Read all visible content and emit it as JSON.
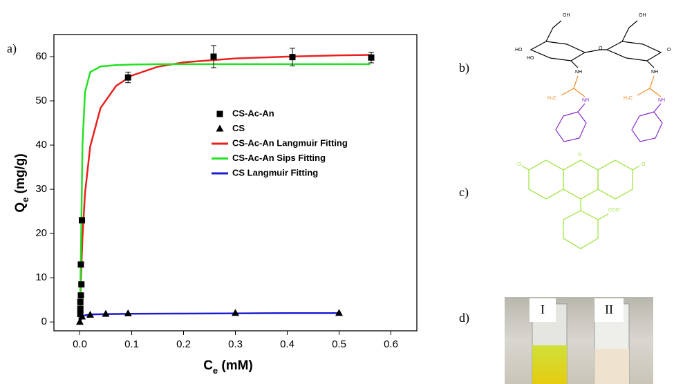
{
  "chart_data": {
    "type": "scatter-fit",
    "xlabel": {
      "main": "C",
      "sub": "e",
      "rest": " (mM)"
    },
    "ylabel": {
      "main": "Q",
      "sub": "e",
      "rest": " (mg/g)"
    },
    "xlim": [
      -0.05,
      0.65
    ],
    "ylim": [
      -2,
      65
    ],
    "xticks": [
      {
        "value": 0,
        "label": "0.0"
      },
      {
        "value": 0.1,
        "label": "0.1"
      },
      {
        "value": 0.2,
        "label": "0.2"
      },
      {
        "value": 0.3,
        "label": "0.3"
      },
      {
        "value": 0.4,
        "label": "0.4"
      },
      {
        "value": 0.5,
        "label": "0.5"
      },
      {
        "value": 0.6,
        "label": "0.6"
      }
    ],
    "yticks": [
      0,
      10,
      20,
      30,
      40,
      50,
      60
    ],
    "series": [
      {
        "name": "CS-Ac-An",
        "kind": "points",
        "marker": "square",
        "color": "#000000",
        "x": [
          0.001,
          0.001,
          0.001,
          0.002,
          0.003,
          0.002,
          0.004,
          0.093,
          0.258,
          0.41,
          0.562
        ],
        "values": [
          1.8,
          3,
          4.5,
          6,
          8.5,
          13,
          23,
          55.3,
          60,
          59.9,
          59.8
        ],
        "errors": [
          null,
          null,
          null,
          null,
          null,
          null,
          null,
          1.2,
          2.5,
          2,
          1.2
        ]
      },
      {
        "name": "CS",
        "kind": "points",
        "marker": "triangle",
        "color": "#000000",
        "x": [
          0,
          0.004,
          0.02,
          0.05,
          0.093,
          0.3,
          0.5
        ],
        "values": [
          0,
          1.2,
          1.6,
          1.8,
          1.9,
          2,
          2
        ]
      },
      {
        "name": "CS-Ac-An Langmuir Fitting",
        "kind": "line",
        "color": "#e8201e",
        "x": [
          0,
          0.002,
          0.005,
          0.01,
          0.02,
          0.04,
          0.07,
          0.1,
          0.15,
          0.2,
          0.3,
          0.4,
          0.5,
          0.56
        ],
        "values": [
          0,
          9.4,
          19.1,
          29.2,
          39.7,
          48.4,
          53.4,
          55.7,
          57.7,
          58.7,
          59.6,
          60,
          60.3,
          60.4
        ]
      },
      {
        "name": "CS-Ac-An Sips Fitting",
        "kind": "line",
        "color": "#22e222",
        "x": [
          0,
          0.002,
          0.005,
          0.01,
          0.02,
          0.04,
          0.07,
          0.1,
          0.15,
          0.2,
          0.3,
          0.4,
          0.5,
          0.56
        ],
        "values": [
          0,
          15,
          40,
          52,
          56.5,
          57.8,
          58.1,
          58.2,
          58.3,
          58.3,
          58.3,
          58.3,
          58.3,
          58.3
        ]
      },
      {
        "name": "CS Langmuir Fitting",
        "kind": "line",
        "color": "#1c1cd0",
        "x": [
          0,
          0.005,
          0.01,
          0.02,
          0.05,
          0.1,
          0.2,
          0.3,
          0.4,
          0.5
        ],
        "values": [
          0,
          1.2,
          1.5,
          1.7,
          1.8,
          1.85,
          1.9,
          1.95,
          2,
          2
        ]
      }
    ]
  },
  "panel_labels": [
    "a)",
    "b)",
    "c)",
    "d)"
  ],
  "chitosan_labels": [
    "OH",
    "OH",
    "HO",
    "HO",
    "O",
    "O",
    "NH",
    "NH",
    "H₃C",
    "H₃C",
    "NH",
    "NH"
  ],
  "fluorescein_labels": [
    "⁻O",
    "O",
    "O",
    "COO⁻"
  ],
  "photo_labels": [
    "I",
    "II"
  ]
}
